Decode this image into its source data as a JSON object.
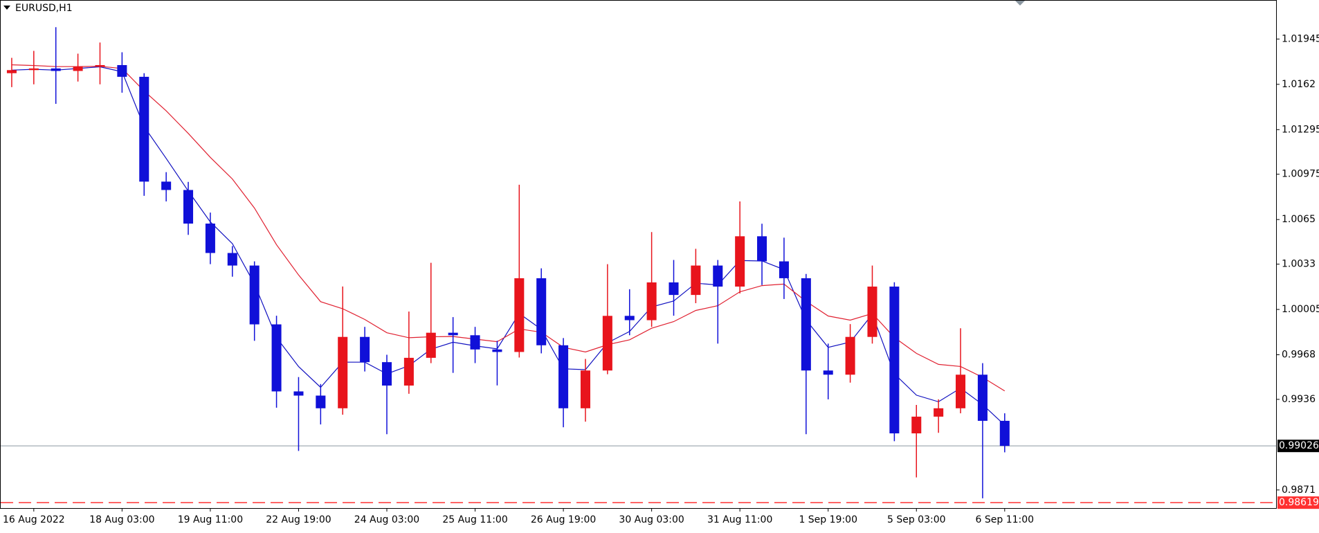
{
  "chart_data": {
    "type": "candlestick",
    "title": "EURUSD,H1",
    "bull_color": "#e8141c",
    "bear_color": "#1010d8",
    "ylim": [
      0.9858,
      1.0222
    ],
    "yticks": [
      1.01945,
      1.0162,
      1.01295,
      1.00975,
      1.0065,
      1.0033,
      1.00005,
      0.9968,
      0.9936,
      0.9871
    ],
    "xlim": [
      -0.5,
      57.3
    ],
    "xticks": [
      {
        "value": 1,
        "label": "16 Aug 2022"
      },
      {
        "value": 5,
        "label": "18 Aug 03:00"
      },
      {
        "value": 9,
        "label": "19 Aug 11:00"
      },
      {
        "value": 13,
        "label": "22 Aug 19:00"
      },
      {
        "value": 17,
        "label": "24 Aug 03:00"
      },
      {
        "value": 21,
        "label": "25 Aug 11:00"
      },
      {
        "value": 25,
        "label": "26 Aug 19:00"
      },
      {
        "value": 29,
        "label": "30 Aug 03:00"
      },
      {
        "value": 33,
        "label": "31 Aug 11:00"
      },
      {
        "value": 37,
        "label": "1 Sep 19:00"
      },
      {
        "value": 41,
        "label": "5 Sep 03:00"
      },
      {
        "value": 45,
        "label": "6 Sep 11:00"
      }
    ],
    "price_line": {
      "value": 0.99026,
      "label": "0.99026",
      "color": "#8a96a0"
    },
    "alert_line": {
      "value": 0.98619,
      "label": "0.98619",
      "color": "#ff3030"
    },
    "candles": [
      [
        1.017,
        1.0181,
        1.016,
        1.01722
      ],
      [
        1.01722,
        1.0186,
        1.0162,
        1.01734
      ],
      [
        1.01734,
        1.0203,
        1.0148,
        1.01716
      ],
      [
        1.01716,
        1.0184,
        1.0164,
        1.01746
      ],
      [
        1.01746,
        1.0192,
        1.0162,
        1.01758
      ],
      [
        1.01758,
        1.0185,
        1.0156,
        1.01674
      ],
      [
        1.01674,
        1.017,
        1.0082,
        1.00922
      ],
      [
        1.00922,
        1.0099,
        1.0078,
        1.00862
      ],
      [
        1.00862,
        1.0092,
        1.0054,
        1.00621
      ],
      [
        1.00621,
        1.007,
        1.0033,
        1.0041
      ],
      [
        1.0041,
        1.0046,
        1.0024,
        1.0032
      ],
      [
        1.0032,
        1.0035,
        0.9978,
        0.99898
      ],
      [
        0.99898,
        0.9996,
        0.993,
        0.99417
      ],
      [
        0.99417,
        0.9952,
        0.9899,
        0.99387
      ],
      [
        0.99387,
        0.9947,
        0.9918,
        0.99296
      ],
      [
        0.99296,
        1.0017,
        0.9925,
        0.99808
      ],
      [
        0.99808,
        0.9988,
        0.9956,
        0.99627
      ],
      [
        0.99627,
        0.9968,
        0.9911,
        0.99459
      ],
      [
        0.99459,
        0.9999,
        0.994,
        0.99658
      ],
      [
        0.99658,
        1.0034,
        0.9962,
        0.99838
      ],
      [
        0.99838,
        0.9995,
        0.9955,
        0.9982
      ],
      [
        0.9982,
        0.9988,
        0.9962,
        0.99718
      ],
      [
        0.99718,
        0.9978,
        0.9946,
        0.997
      ],
      [
        0.997,
        1.009,
        0.9966,
        1.00229
      ],
      [
        1.00229,
        1.003,
        0.9969,
        0.99748
      ],
      [
        0.99748,
        0.998,
        0.9916,
        0.99296
      ],
      [
        0.99296,
        0.9965,
        0.992,
        0.99567
      ],
      [
        0.99567,
        1.0033,
        0.9954,
        0.99959
      ],
      [
        0.99959,
        1.0015,
        0.9982,
        0.99928
      ],
      [
        0.99928,
        1.0056,
        0.9988,
        1.00199
      ],
      [
        1.00199,
        1.0036,
        0.9996,
        1.00109
      ],
      [
        1.00109,
        1.0044,
        1.0005,
        1.0032
      ],
      [
        1.0032,
        1.0036,
        0.9976,
        1.00169
      ],
      [
        1.00169,
        1.0078,
        1.0012,
        1.0053
      ],
      [
        1.0053,
        1.0062,
        1.0018,
        1.0035
      ],
      [
        1.0035,
        1.0052,
        1.0008,
        1.00229
      ],
      [
        1.00229,
        1.0026,
        0.9911,
        0.99567
      ],
      [
        0.99567,
        0.9976,
        0.9936,
        0.99537
      ],
      [
        0.99537,
        0.999,
        0.9948,
        0.99808
      ],
      [
        0.99808,
        1.0032,
        0.9976,
        1.00169
      ],
      [
        1.00169,
        1.002,
        0.9906,
        0.99116
      ],
      [
        0.99116,
        0.9932,
        0.988,
        0.99236
      ],
      [
        0.99236,
        0.9936,
        0.9912,
        0.99296
      ],
      [
        0.99296,
        0.9987,
        0.9926,
        0.99537
      ],
      [
        0.99537,
        0.9962,
        0.9865,
        0.99206
      ],
      [
        0.99206,
        0.9926,
        0.9898,
        0.99026
      ]
    ],
    "series": [
      {
        "color": "#1010c0",
        "values": [
          1.01722,
          1.01728,
          1.01722,
          1.01734,
          1.01746,
          1.0171,
          1.01316,
          1.01089,
          1.00855,
          1.00633,
          1.00477,
          1.00188,
          0.99803,
          0.99595,
          0.99446,
          0.99627,
          0.99627,
          0.99543,
          0.99601,
          0.9972,
          0.9977,
          0.99744,
          0.99722,
          0.99976,
          0.99862,
          0.99579,
          0.99573,
          0.99766,
          0.99847,
          1.00023,
          1.00066,
          1.00193,
          1.00181,
          1.00356,
          1.00353,
          1.00291,
          0.99929,
          0.99733,
          0.99771,
          0.9997,
          0.99543,
          0.9939,
          0.99343,
          0.9944,
          0.99323,
          0.99175
        ]
      },
      {
        "color": "#e02030",
        "values": [
          1.0176,
          1.01755,
          1.01747,
          1.01747,
          1.01749,
          1.01734,
          1.01572,
          1.0143,
          1.01268,
          1.01096,
          1.00941,
          1.00732,
          1.00469,
          1.00252,
          1.00061,
          1.0001,
          0.99933,
          0.99838,
          0.99802,
          0.99809,
          0.99811,
          0.99792,
          0.99774,
          0.99865,
          0.99842,
          0.99733,
          0.997,
          0.99752,
          0.99787,
          0.9987,
          0.99918,
          0.99998,
          1.00032,
          1.00132,
          1.00176,
          1.00187,
          1.00063,
          0.99958,
          0.99928,
          0.99976,
          0.99804,
          0.9969,
          0.99611,
          0.99596,
          0.99518,
          0.9942
        ]
      }
    ]
  }
}
